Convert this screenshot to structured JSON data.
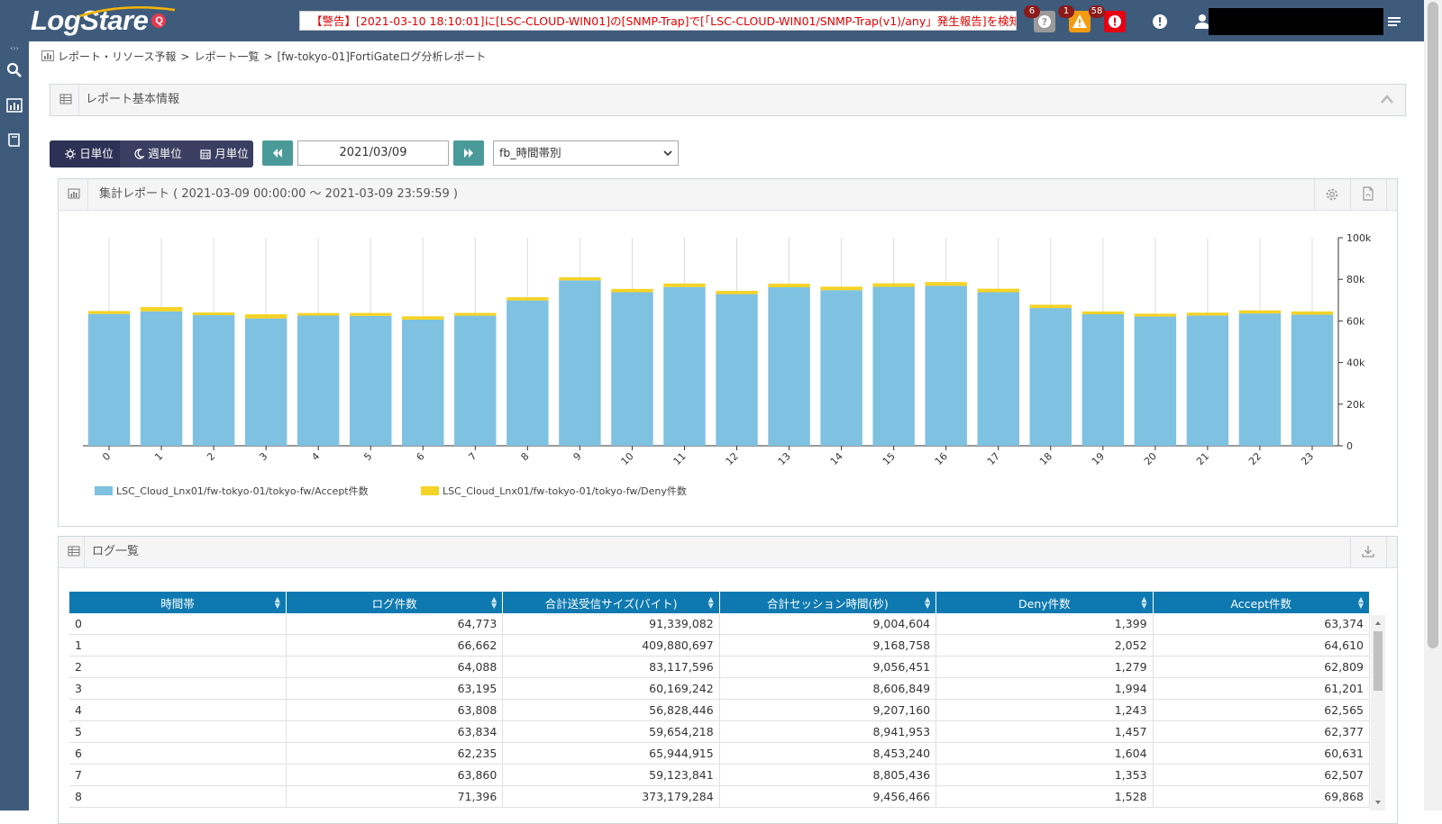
{
  "header": {
    "logo_text": "LogStare",
    "logo_badge": "Q",
    "alert": "【警告】[2021-03-10 18:10:01]に[LSC-CLOUD-WIN01]の[SNMP-Trap]で[「LSC-CLOUD-WIN01/SNMP-Trap(v1)/any」発生報告]を検知",
    "badges": {
      "help": "6",
      "warning": "1",
      "error": "58"
    }
  },
  "breadcrumb": [
    "レポート・リソース予報",
    "レポート一覧",
    "[fw-tokyo-01]FortiGateログ分析レポート"
  ],
  "info_panel": {
    "title": "レポート基本情報"
  },
  "controls": {
    "daily": "日単位",
    "weekly": "週単位",
    "monthly": "月単位",
    "date": "2021/03/09",
    "select_value": "fb_時間帯別"
  },
  "report_panel": {
    "title": "集計レポート ( 2021-03-09 00:00:00 ～ 2021-03-09 23:59:59 )"
  },
  "chart_data": {
    "type": "bar",
    "stacked": true,
    "categories": [
      "0",
      "1",
      "2",
      "3",
      "4",
      "5",
      "6",
      "7",
      "8",
      "9",
      "10",
      "11",
      "12",
      "13",
      "14",
      "15",
      "16",
      "17",
      "18",
      "19",
      "20",
      "21",
      "22",
      "23"
    ],
    "series": [
      {
        "name": "LSC_Cloud_Lnx01/fw-tokyo-01/tokyo-fw/Accept件数",
        "color": "#7fc1e0",
        "values": [
          63374,
          64610,
          62809,
          61201,
          62565,
          62377,
          60631,
          62507,
          69868,
          79500,
          73800,
          76300,
          72900,
          76200,
          74800,
          76400,
          76900,
          73800,
          66200,
          63200,
          62100,
          62600,
          63600,
          63000
        ]
      },
      {
        "name": "LSC_Cloud_Lnx01/fw-tokyo-01/tokyo-fw/Deny件数",
        "color": "#f5d327",
        "values": [
          1399,
          2052,
          1279,
          1994,
          1243,
          1457,
          1604,
          1353,
          1528,
          1500,
          1600,
          1700,
          1600,
          1700,
          1700,
          1700,
          1800,
          1700,
          1600,
          1400,
          1400,
          1400,
          1500,
          1600
        ]
      }
    ],
    "ylim": [
      0,
      100000
    ],
    "yticks": [
      0,
      20000,
      40000,
      60000,
      80000,
      100000
    ],
    "ytick_labels": [
      "0",
      "20k",
      "40k",
      "60k",
      "80k",
      "100k"
    ],
    "y_axis_side": "right",
    "grid": "vertical",
    "legend_position": "bottom-left"
  },
  "log_panel": {
    "title": "ログ一覧",
    "columns": [
      "時間帯",
      "ログ件数",
      "合計送受信サイズ(バイト)",
      "合計セッション時間(秒)",
      "Deny件数",
      "Accept件数"
    ],
    "rows": [
      [
        "0",
        "64,773",
        "91,339,082",
        "9,004,604",
        "1,399",
        "63,374"
      ],
      [
        "1",
        "66,662",
        "409,880,697",
        "9,168,758",
        "2,052",
        "64,610"
      ],
      [
        "2",
        "64,088",
        "83,117,596",
        "9,056,451",
        "1,279",
        "62,809"
      ],
      [
        "3",
        "63,195",
        "60,169,242",
        "8,606,849",
        "1,994",
        "61,201"
      ],
      [
        "4",
        "63,808",
        "56,828,446",
        "9,207,160",
        "1,243",
        "62,565"
      ],
      [
        "5",
        "63,834",
        "59,654,218",
        "8,941,953",
        "1,457",
        "62,377"
      ],
      [
        "6",
        "62,235",
        "65,944,915",
        "8,453,240",
        "1,604",
        "60,631"
      ],
      [
        "7",
        "63,860",
        "59,123,841",
        "8,805,436",
        "1,353",
        "62,507"
      ],
      [
        "8",
        "71,396",
        "373,179,284",
        "9,456,466",
        "1,528",
        "69,868"
      ]
    ]
  }
}
